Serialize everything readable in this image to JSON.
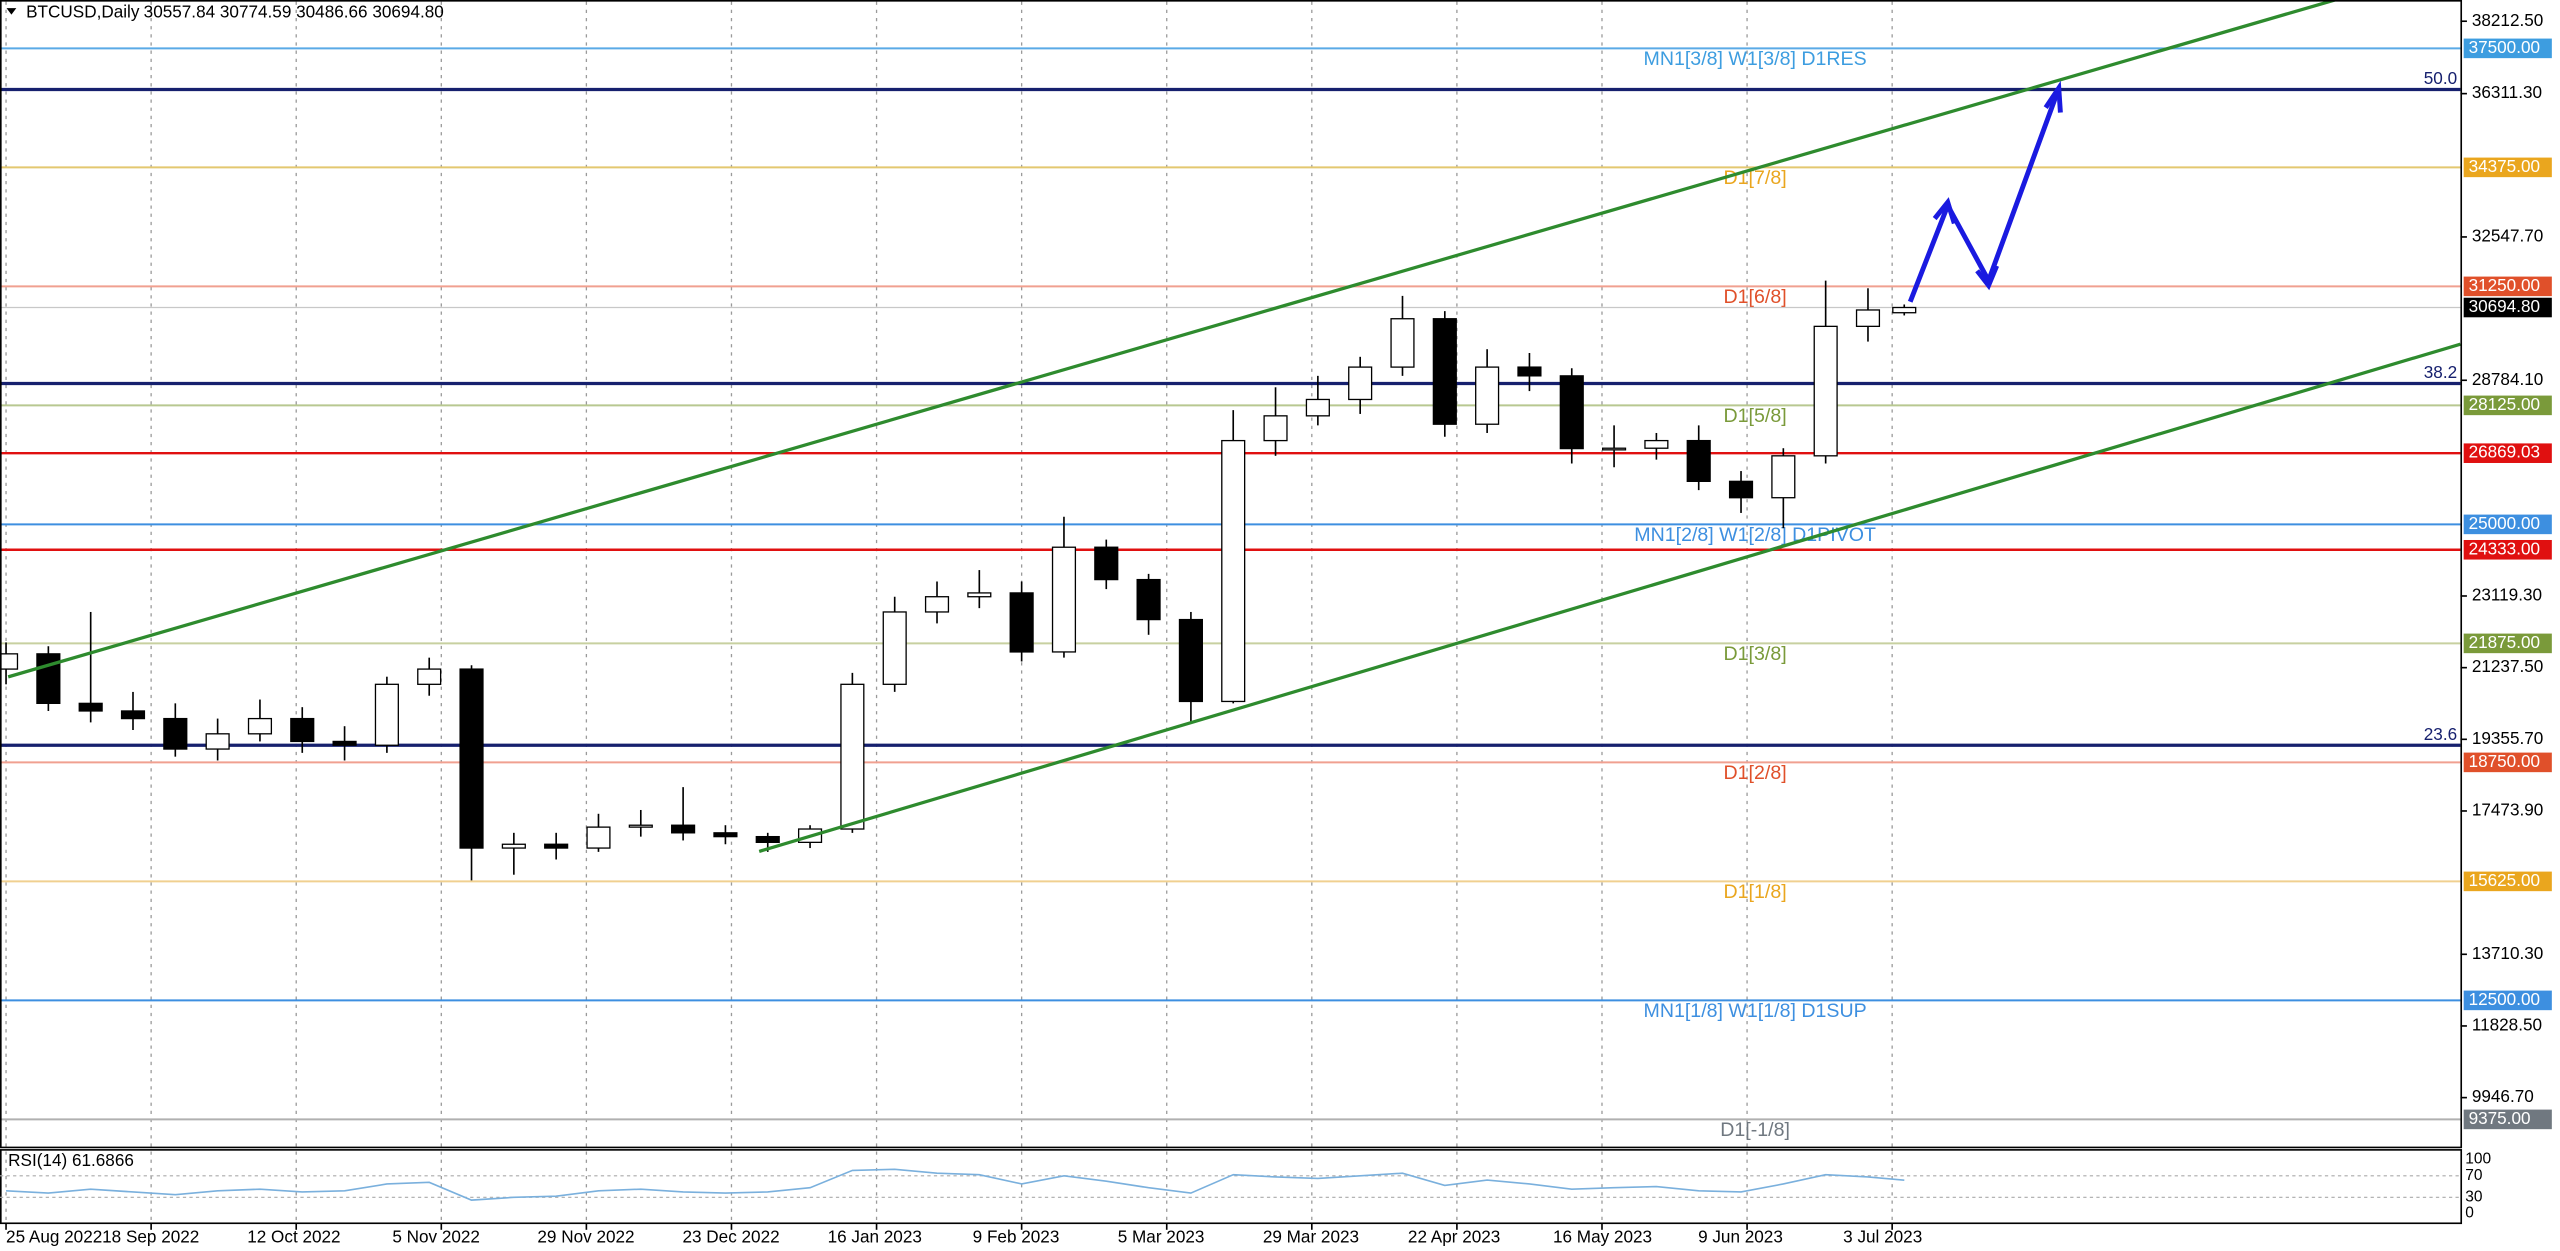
{
  "chart_data": {
    "type": "candlestick",
    "title": "BTCUSD,Daily",
    "ohlc_text": "30557.84 30774.59 30486.66 30694.80",
    "x": [
      "2022-08-25",
      "2022-09-01",
      "2022-09-08",
      "2022-09-15",
      "2022-09-22",
      "2022-09-29",
      "2022-10-06",
      "2022-10-13",
      "2022-10-20",
      "2022-10-27",
      "2022-11-03",
      "2022-11-10",
      "2022-11-17",
      "2022-11-24",
      "2022-12-01",
      "2022-12-08",
      "2022-12-15",
      "2022-12-22",
      "2022-12-29",
      "2023-01-05",
      "2023-01-12",
      "2023-01-19",
      "2023-01-26",
      "2023-02-02",
      "2023-02-09",
      "2023-02-16",
      "2023-02-23",
      "2023-03-02",
      "2023-03-09",
      "2023-03-16",
      "2023-03-23",
      "2023-03-30",
      "2023-04-06",
      "2023-04-13",
      "2023-04-20",
      "2023-04-27",
      "2023-05-04",
      "2023-05-11",
      "2023-05-18",
      "2023-05-25",
      "2023-06-01",
      "2023-06-08",
      "2023-06-15",
      "2023-06-22",
      "2023-06-29",
      "2023-07-05"
    ],
    "open": [
      21200,
      21600,
      20300,
      20100,
      19900,
      19100,
      19500,
      19900,
      19300,
      19200,
      20800,
      21200,
      16500,
      16600,
      16500,
      17050,
      17100,
      16900,
      16800,
      16650,
      17000,
      20800,
      22700,
      23100,
      23200,
      21650,
      24400,
      23550,
      22500,
      20350,
      27200,
      27850,
      28280,
      29130,
      30400,
      27630,
      29130,
      28900,
      26990,
      27000,
      27200,
      26130,
      25700,
      26800,
      30200,
      30557.84
    ],
    "high": [
      21900,
      21800,
      22700,
      20600,
      20300,
      19900,
      20400,
      20200,
      19700,
      21000,
      21500,
      21300,
      16900,
      16900,
      17400,
      17500,
      18100,
      17100,
      16900,
      17100,
      21100,
      23100,
      23500,
      23800,
      23500,
      25200,
      24600,
      23700,
      22700,
      28000,
      28600,
      28900,
      29400,
      31000,
      30600,
      29600,
      29500,
      29100,
      27600,
      27400,
      27600,
      26400,
      27000,
      31400,
      31200,
      30774.59
    ],
    "low": [
      20800,
      20100,
      19800,
      19600,
      18900,
      18800,
      19300,
      19000,
      18800,
      19000,
      20500,
      15650,
      15800,
      16200,
      16400,
      16800,
      16700,
      16600,
      16400,
      16500,
      16900,
      20600,
      22400,
      22800,
      21400,
      21500,
      23300,
      22100,
      19800,
      20300,
      26800,
      27600,
      27900,
      28900,
      27300,
      27400,
      28500,
      26600,
      26500,
      26700,
      25900,
      25300,
      24900,
      26600,
      29800,
      30486.66
    ],
    "close": [
      21600,
      20300,
      20100,
      19900,
      19100,
      19500,
      19900,
      19300,
      19200,
      20800,
      21200,
      16500,
      16600,
      16500,
      17050,
      17100,
      16900,
      16800,
      16650,
      17000,
      20800,
      22700,
      23100,
      23200,
      21650,
      24400,
      23550,
      22500,
      20350,
      27200,
      27850,
      28280,
      29130,
      30400,
      27630,
      29130,
      28900,
      26990,
      27000,
      27200,
      26130,
      25700,
      26800,
      30200,
      30630,
      {
        "value": 30694.8,
        "label": "30694.80"
      }
    ],
    "up_color": "#ffffff",
    "down_color": "#000000",
    "xlim": [
      "2022-08-24",
      "2023-10-05"
    ],
    "xticks": [
      {
        "value": "2022-08-25",
        "label": "25 Aug 2022"
      },
      {
        "value": "2022-09-18",
        "label": "18 Sep 2022"
      },
      {
        "value": "2022-10-12",
        "label": "12 Oct 2022"
      },
      {
        "value": "2022-11-05",
        "label": "5 Nov 2022"
      },
      {
        "value": "2022-11-29",
        "label": "29 Nov 2022"
      },
      {
        "value": "2022-12-23",
        "label": "23 Dec 2022"
      },
      {
        "value": "2023-01-16",
        "label": "16 Jan 2023"
      },
      {
        "value": "2023-02-09",
        "label": "9 Feb 2023"
      },
      {
        "value": "2023-03-05",
        "label": "5 Mar 2023"
      },
      {
        "value": "2023-03-29",
        "label": "29 Mar 2023"
      },
      {
        "value": "2023-04-22",
        "label": "22 Apr 2023"
      },
      {
        "value": "2023-05-16",
        "label": "16 May 2023"
      },
      {
        "value": "2023-06-09",
        "label": "9 Jun 2023"
      },
      {
        "value": "2023-07-03",
        "label": "3 Jul 2023"
      }
    ],
    "ylim": [
      8660,
      38770
    ],
    "yticks": [
      {
        "value": 38212.5,
        "label": "38212.50"
      },
      {
        "value": 36311.3,
        "label": "36311.30"
      },
      {
        "value": 32547.7,
        "label": "32547.70"
      },
      {
        "value": 28784.1,
        "label": "28784.10"
      },
      {
        "value": 23119.3,
        "label": "23119.30"
      },
      {
        "value": 21237.5,
        "label": "21237.50"
      },
      {
        "value": 19355.7,
        "label": "19355.70"
      },
      {
        "value": 17473.9,
        "label": "17473.90"
      },
      {
        "value": 13710.3,
        "label": "13710.30"
      },
      {
        "value": 11828.5,
        "label": "11828.50"
      },
      {
        "value": 9946.7,
        "label": "9946.70"
      }
    ],
    "levels": [
      {
        "value": 37500,
        "label": "37500.00",
        "name": "MN1[3/8] W1[3/8] D1RES",
        "color": "#5aaae6",
        "box_color": "#3d9de0"
      },
      {
        "value": 34375,
        "label": "34375.00",
        "name": "D1[7/8]",
        "color": "#e3c870",
        "box_color": "#eaa61e"
      },
      {
        "value": 31250,
        "label": "31250.00",
        "name": "D1[6/8]",
        "color": "#f0a090",
        "box_color": "#e0502a"
      },
      {
        "value": 28125,
        "label": "28125.00",
        "name": "D1[5/8]",
        "color": "#b8c890",
        "box_color": "#7a9a3a"
      },
      {
        "value": 26869.03,
        "label": "26869.03",
        "color": "#e01010",
        "box_color": "#e01010"
      },
      {
        "value": 25000,
        "label": "25000.00",
        "name": "MN1[2/8] W1[2/8] D1PIVOT",
        "color": "#3d8fe0",
        "box_color": "#3d8fe0"
      },
      {
        "value": 24333,
        "label": "24333.00",
        "color": "#e01010",
        "box_color": "#e01010"
      },
      {
        "value": 21875,
        "label": "21875.00",
        "name": "D1[3/8]",
        "color": "#c8d0a0",
        "box_color": "#7a9a3a"
      },
      {
        "value": 18750,
        "label": "18750.00",
        "name": "D1[2/8]",
        "color": "#f0a090",
        "box_color": "#e0502a"
      },
      {
        "value": 15625,
        "label": "15625.00",
        "name": "D1[1/8]",
        "color": "#f0d090",
        "box_color": "#eaa61e"
      },
      {
        "value": 12500,
        "label": "12500.00",
        "name": "MN1[1/8] W1[1/8] D1SUP",
        "color": "#3d8fe0",
        "box_color": "#3d8fe0"
      },
      {
        "value": 9375,
        "label": "9375.00",
        "name": "D1[-1/8]",
        "color": "#b0b0b0",
        "box_color": "#707880"
      }
    ],
    "fib_levels": [
      {
        "value": 36420,
        "label": "50.0"
      },
      {
        "value": 28700,
        "label": "38.2"
      },
      {
        "value": 19200,
        "label": "23.6"
      }
    ],
    "current_price": {
      "value": 30694.8,
      "label": "30694.80"
    },
    "rsi": {
      "label": "RSI(14) 61.6866",
      "ylim": [
        0,
        100
      ],
      "yticks": [
        0,
        30,
        70,
        100
      ],
      "color": "#7ab0dd",
      "values": [
        42,
        38,
        45,
        40,
        35,
        42,
        45,
        40,
        42,
        55,
        58,
        25,
        30,
        32,
        42,
        45,
        40,
        38,
        40,
        48,
        80,
        82,
        75,
        72,
        55,
        70,
        60,
        48,
        38,
        72,
        68,
        65,
        70,
        75,
        52,
        62,
        55,
        45,
        48,
        50,
        42,
        40,
        55,
        72,
        68,
        61.6866
      ]
    }
  }
}
